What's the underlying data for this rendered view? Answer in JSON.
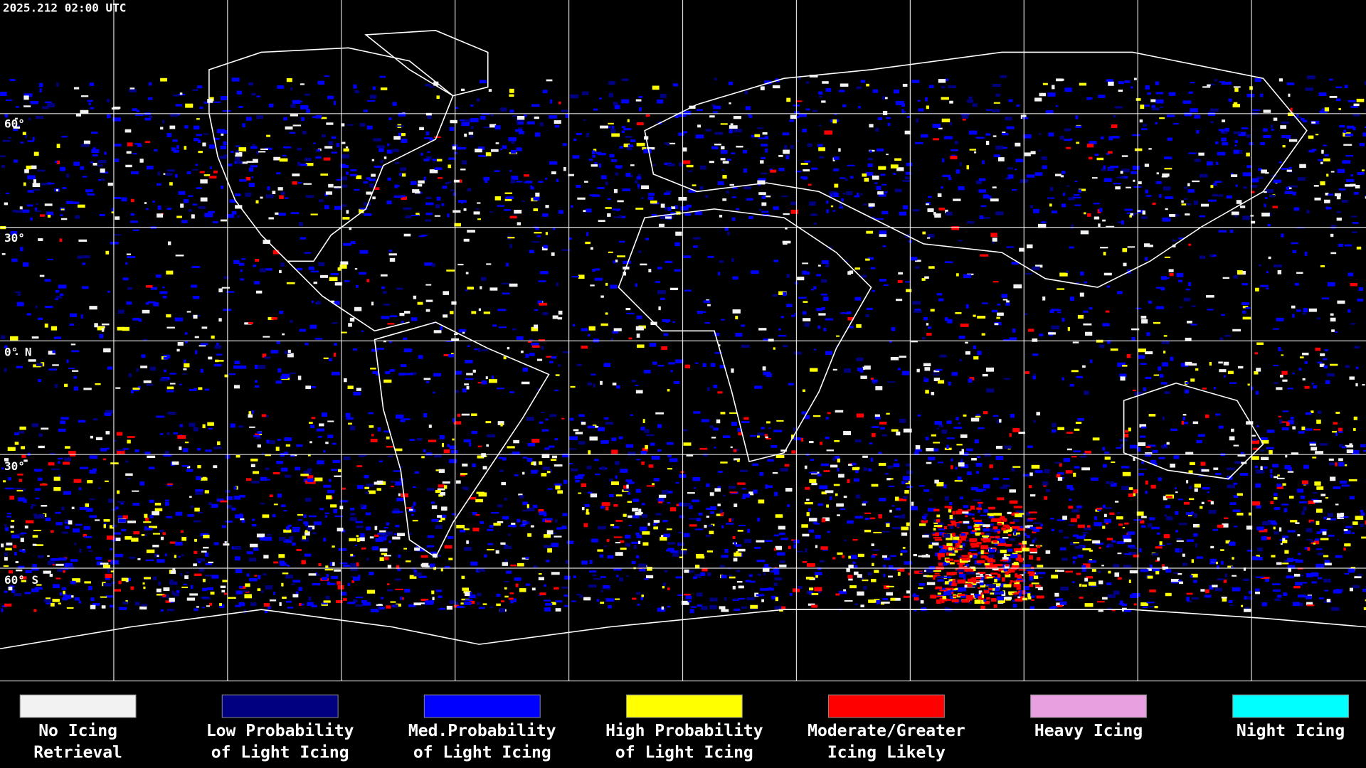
{
  "header": {
    "title": "2025.212 02:00 UTC"
  },
  "map": {
    "lat_labels": [
      "60°",
      "30°",
      "0° N",
      "30°",
      "60° S"
    ]
  },
  "legend": [
    {
      "lines": [
        "No Icing",
        "Retrieval"
      ],
      "color": "#f2f2f2"
    },
    {
      "lines": [
        "Low Probability",
        "of Light Icing"
      ],
      "color": "#000080"
    },
    {
      "lines": [
        "Med.Probability",
        "of Light Icing"
      ],
      "color": "#0000ff"
    },
    {
      "lines": [
        "High Probability",
        "of Light Icing"
      ],
      "color": "#ffff00"
    },
    {
      "lines": [
        "Moderate/Greater",
        "Icing Likely"
      ],
      "color": "#ff0000"
    },
    {
      "lines": [
        "Heavy Icing"
      ],
      "color": "#e8a0e0"
    },
    {
      "lines": [
        "Night Icing"
      ],
      "color": "#00ffff"
    }
  ]
}
